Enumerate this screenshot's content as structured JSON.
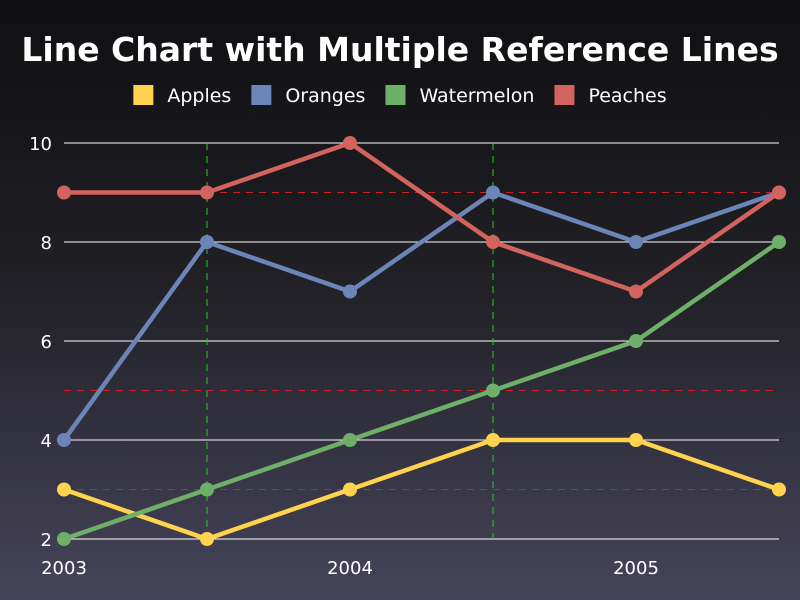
{
  "chart_data": {
    "type": "line",
    "title": "Line Chart with Multiple Reference Lines",
    "xlabel": "",
    "ylabel": "",
    "x": [
      2003,
      2003.5,
      2004,
      2004.5,
      2005,
      2005.5
    ],
    "x_ticks": [
      2003,
      2004,
      2005
    ],
    "x_tick_labels": [
      "2003",
      "2004",
      "2005"
    ],
    "xlim": [
      2003,
      2005.5
    ],
    "ylim": [
      2,
      10
    ],
    "y_ticks": [
      2,
      4,
      6,
      8,
      10
    ],
    "y_tick_labels": [
      "2",
      "4",
      "6",
      "8",
      "10"
    ],
    "grid": "horizontal",
    "legend_position": "top",
    "series": [
      {
        "name": "Apples",
        "color": "#ffd34d",
        "values": [
          3,
          2,
          3,
          4,
          4,
          3
        ]
      },
      {
        "name": "Oranges",
        "color": "#6c85b8",
        "values": [
          4,
          8,
          7,
          9,
          8,
          9
        ]
      },
      {
        "name": "Watermelon",
        "color": "#6eaf6a",
        "values": [
          2,
          3,
          4,
          5,
          6,
          8
        ]
      },
      {
        "name": "Peaches",
        "color": "#d2635e",
        "values": [
          9,
          9,
          10,
          8,
          7,
          9
        ]
      }
    ],
    "reference_lines": {
      "vertical": {
        "values": [
          2003.5,
          2004.5
        ],
        "color": "#22cc22",
        "style": "dashed"
      },
      "horizontal": {
        "values": [
          3,
          5,
          9
        ],
        "color": "#cc2222",
        "style": "dashed"
      }
    }
  }
}
